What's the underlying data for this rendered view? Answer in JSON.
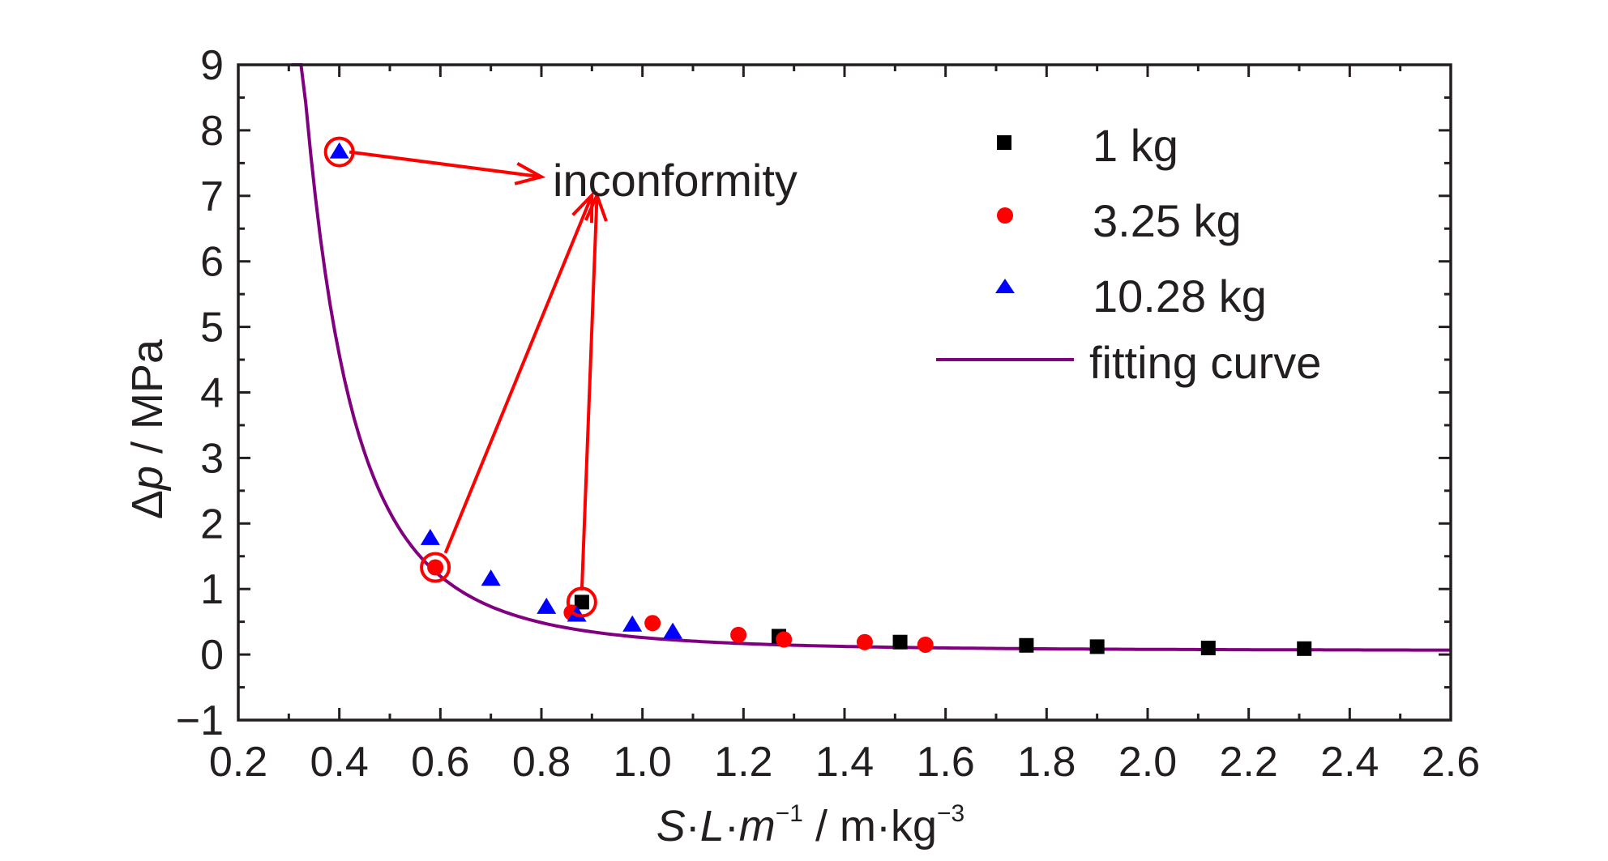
{
  "chart_data": {
    "type": "scatter",
    "title": "",
    "xlabel": {
      "var_s": "S",
      "dot1": "·",
      "var_l": "L",
      "dot2": "·",
      "var_m": "m",
      "exp1": "−1",
      "unit": " / m·kg",
      "exp2": "−3"
    },
    "ylabel": {
      "delta": "Δ",
      "var_p": "p",
      "unit": " / MPa"
    },
    "xlim": [
      0.2,
      2.6
    ],
    "ylim": [
      -1,
      9
    ],
    "x_ticks": [
      "0.2",
      "0.4",
      "0.6",
      "0.8",
      "1.0",
      "1.2",
      "1.4",
      "1.6",
      "1.8",
      "2.0",
      "2.2",
      "2.4",
      "2.6"
    ],
    "y_ticks": [
      "−1",
      "0",
      "1",
      "2",
      "3",
      "4",
      "5",
      "6",
      "7",
      "8",
      "9"
    ],
    "x_tick_values": [
      0.2,
      0.4,
      0.6,
      0.8,
      1.0,
      1.2,
      1.4,
      1.6,
      1.8,
      2.0,
      2.2,
      2.4,
      2.6
    ],
    "y_tick_values": [
      -1,
      0,
      1,
      2,
      3,
      4,
      5,
      6,
      7,
      8,
      9
    ],
    "grid": false,
    "legend_position": "top-right",
    "series": [
      {
        "name": "1 kg",
        "marker": "square",
        "color": "#000000",
        "points": [
          [
            0.88,
            0.8
          ],
          [
            1.27,
            0.28
          ],
          [
            1.51,
            0.19
          ],
          [
            1.76,
            0.14
          ],
          [
            1.9,
            0.12
          ],
          [
            2.12,
            0.1
          ],
          [
            2.31,
            0.09
          ]
        ]
      },
      {
        "name": "3.25 kg",
        "marker": "circle",
        "color": "#ff0000",
        "points": [
          [
            0.59,
            1.33
          ],
          [
            0.86,
            0.64
          ],
          [
            1.02,
            0.48
          ],
          [
            1.19,
            0.3
          ],
          [
            1.28,
            0.23
          ],
          [
            1.44,
            0.19
          ],
          [
            1.56,
            0.15
          ]
        ]
      },
      {
        "name": "10.28 kg",
        "marker": "triangle",
        "color": "#0000ff",
        "points": [
          [
            0.4,
            7.67
          ],
          [
            0.58,
            1.77
          ],
          [
            0.7,
            1.15
          ],
          [
            0.81,
            0.72
          ],
          [
            0.87,
            0.6
          ],
          [
            0.98,
            0.45
          ],
          [
            1.06,
            0.34
          ]
        ]
      }
    ],
    "fit": {
      "name": "fitting curve",
      "color": "#800080",
      "x_start": 0.305,
      "x_end": 2.6
    },
    "annotations": {
      "text": "inconformity",
      "color": "#ff0000",
      "circled_points": [
        [
          0.4,
          7.67
        ],
        [
          0.59,
          1.33
        ],
        [
          0.88,
          0.8
        ]
      ],
      "arrows": [
        {
          "from": [
            0.42,
            7.67
          ],
          "to": [
            0.8,
            7.29
          ]
        },
        {
          "from": [
            0.61,
            1.55
          ],
          "to": [
            0.9,
            7.01
          ]
        },
        {
          "from": [
            0.88,
            0.98
          ],
          "to": [
            0.91,
            7.01
          ]
        }
      ]
    }
  }
}
